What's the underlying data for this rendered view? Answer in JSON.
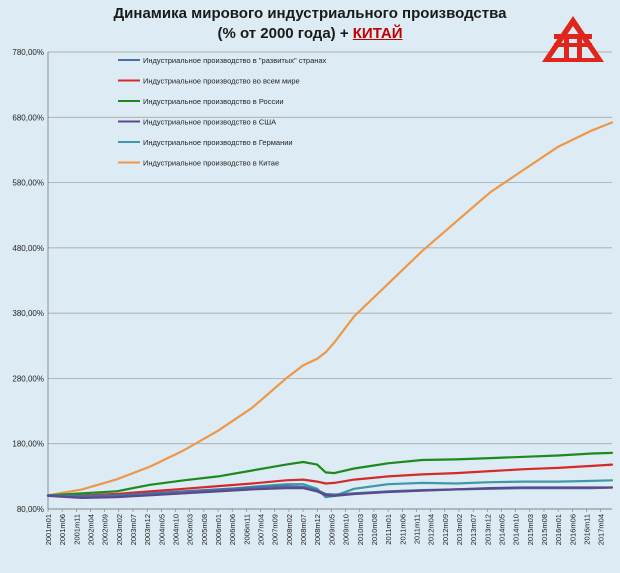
{
  "title": {
    "line1": "Динамика мирового индустриального производства",
    "line2_prefix": "(% от 2000 года) + ",
    "line2_highlight": "КИТАЙ"
  },
  "logo": {
    "icon": "red-triangle-logo-icon",
    "color": "#e0261c"
  },
  "chart_data": {
    "type": "line",
    "title": "Динамика мирового индустриального производства (% от 2000 года) + КИТАЙ",
    "xlabel": "",
    "ylabel": "",
    "ylim": [
      80,
      780
    ],
    "y_ticks": [
      "80,00%",
      "180,00%",
      "280,00%",
      "380,00%",
      "480,00%",
      "580,00%",
      "680,00%",
      "780,00%"
    ],
    "y_tick_values": [
      80,
      180,
      280,
      380,
      480,
      580,
      680,
      780
    ],
    "x_ticks": [
      "2001m01",
      "2001m06",
      "2001m11",
      "2002m04",
      "2002m09",
      "2003m02",
      "2003m07",
      "2003m12",
      "2004m05",
      "2004m10",
      "2005m03",
      "2005m08",
      "2006m01",
      "2006m06",
      "2006m11",
      "2007m04",
      "2007m09",
      "2008m02",
      "2008m07",
      "2008m12",
      "2009m05",
      "2009m10",
      "2010m03",
      "2010m08",
      "2011m01",
      "2011m06",
      "2011m11",
      "2012m04",
      "2012m09",
      "2013m02",
      "2013m07",
      "2013m12",
      "2014m05",
      "2014m10",
      "2015m03",
      "2015m08",
      "2016m01",
      "2016m06",
      "2016m11",
      "2017m04"
    ],
    "grid": "horizontal",
    "legend_position": "top-left",
    "x_dates": [
      "2001-01",
      "2002-01",
      "2003-01",
      "2004-01",
      "2005-01",
      "2006-01",
      "2007-01",
      "2008-01",
      "2008-07",
      "2008-12",
      "2009-03",
      "2009-06",
      "2010-01",
      "2011-01",
      "2012-01",
      "2013-01",
      "2014-01",
      "2015-01",
      "2016-01",
      "2017-01",
      "2017-08"
    ],
    "series": [
      {
        "name": "Индустриальное производство в \"развитых\" странах",
        "color": "#4a6fa5",
        "values": [
          101,
          100,
          101,
          104,
          107,
          110,
          113,
          115,
          114,
          109,
          103,
          102,
          104,
          107,
          109,
          110,
          111,
          112,
          112,
          112,
          113
        ]
      },
      {
        "name": "Индустриальное производство во всем мире",
        "color": "#d42a2a",
        "values": [
          101,
          101,
          103,
          107,
          111,
          115,
          119,
          124,
          125,
          122,
          119,
          120,
          125,
          130,
          133,
          135,
          138,
          141,
          143,
          146,
          148
        ]
      },
      {
        "name": "Индустриальное производство в России",
        "color": "#1e8a1e",
        "values": [
          101,
          104,
          107,
          117,
          124,
          130,
          139,
          148,
          152,
          148,
          136,
          135,
          142,
          150,
          155,
          156,
          158,
          160,
          162,
          165,
          166
        ]
      },
      {
        "name": "Индустриальное производство в США",
        "color": "#5b4a8a",
        "values": [
          100,
          97,
          98,
          101,
          104,
          107,
          110,
          112,
          112,
          107,
          101,
          100,
          103,
          106,
          108,
          110,
          112,
          113,
          113,
          113,
          113
        ]
      },
      {
        "name": "Индустриальное производство в Германии",
        "color": "#3f98a8",
        "values": [
          101,
          99,
          100,
          102,
          104,
          109,
          114,
          118,
          118,
          111,
          98,
          100,
          111,
          118,
          120,
          119,
          121,
          122,
          122,
          123,
          124
        ]
      },
      {
        "name": "Индустриальное производство в Китае",
        "color": "#ee9748",
        "values": [
          101,
          110,
          125,
          145,
          170,
          200,
          235,
          280,
          300,
          310,
          320,
          335,
          375,
          425,
          475,
          520,
          565,
          600,
          635,
          660,
          672
        ]
      }
    ]
  }
}
